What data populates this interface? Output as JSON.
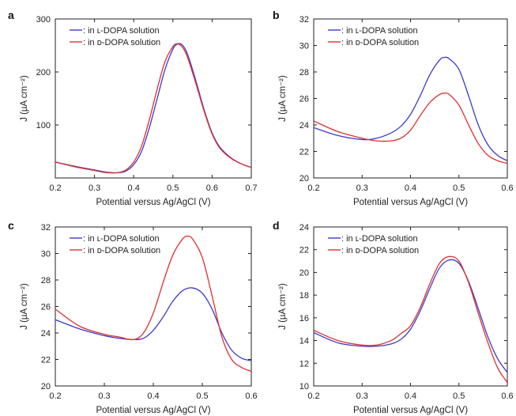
{
  "chart_data": [
    {
      "panel": "a",
      "type": "line",
      "xlabel": "Potential versus Ag/AgCl (V)",
      "ylabel": "J (µA cm⁻²)",
      "xlim": [
        0.2,
        0.7
      ],
      "ylim": [
        0,
        300
      ],
      "xticks": [
        0.2,
        0.3,
        0.4,
        0.5,
        0.6,
        0.7
      ],
      "yticks": [
        100,
        200,
        300
      ],
      "legend_position": "top-left",
      "series": [
        {
          "name": ": in ʟ-DOPA solution",
          "color": "#3b3bcc",
          "x": [
            0.2,
            0.25,
            0.3,
            0.33,
            0.36,
            0.38,
            0.4,
            0.42,
            0.44,
            0.46,
            0.48,
            0.5,
            0.51,
            0.52,
            0.53,
            0.54,
            0.56,
            0.58,
            0.6,
            0.62,
            0.65,
            0.68,
            0.7
          ],
          "y": [
            30,
            22,
            15,
            11,
            10,
            13,
            25,
            50,
            95,
            150,
            205,
            243,
            252,
            253,
            245,
            228,
            180,
            128,
            85,
            58,
            37,
            25,
            20
          ]
        },
        {
          "name": ": in ᴅ-DOPA solution",
          "color": "#e03030",
          "x": [
            0.2,
            0.25,
            0.3,
            0.33,
            0.36,
            0.38,
            0.4,
            0.42,
            0.44,
            0.46,
            0.48,
            0.5,
            0.51,
            0.52,
            0.53,
            0.54,
            0.56,
            0.58,
            0.6,
            0.62,
            0.65,
            0.68,
            0.7
          ],
          "y": [
            30,
            21,
            14,
            10,
            10,
            15,
            30,
            60,
            110,
            168,
            220,
            248,
            253,
            250,
            240,
            222,
            175,
            125,
            83,
            56,
            36,
            25,
            20
          ]
        }
      ]
    },
    {
      "panel": "b",
      "type": "line",
      "xlabel": "Potential versus Ag/AgCl (V)",
      "ylabel": "J (µA cm⁻²)",
      "xlim": [
        0.2,
        0.6
      ],
      "ylim": [
        20,
        32
      ],
      "xticks": [
        0.2,
        0.3,
        0.4,
        0.5,
        0.6
      ],
      "yticks": [
        20,
        22,
        24,
        26,
        28,
        30,
        32
      ],
      "legend_position": "top-left",
      "series": [
        {
          "name": ": in ʟ-DOPA solution",
          "color": "#3b3bcc",
          "x": [
            0.2,
            0.25,
            0.3,
            0.33,
            0.36,
            0.38,
            0.4,
            0.42,
            0.44,
            0.46,
            0.47,
            0.48,
            0.5,
            0.52,
            0.54,
            0.56,
            0.58,
            0.6
          ],
          "y": [
            23.8,
            23.2,
            22.9,
            23.0,
            23.4,
            23.9,
            24.8,
            26.2,
            27.8,
            28.9,
            29.1,
            29.0,
            28.2,
            26.2,
            24.0,
            22.5,
            21.7,
            21.3
          ]
        },
        {
          "name": ": in ᴅ-DOPA solution",
          "color": "#e03030",
          "x": [
            0.2,
            0.25,
            0.3,
            0.33,
            0.36,
            0.38,
            0.4,
            0.42,
            0.44,
            0.46,
            0.47,
            0.48,
            0.5,
            0.52,
            0.54,
            0.56,
            0.58,
            0.6
          ],
          "y": [
            24.3,
            23.5,
            23.0,
            22.8,
            22.8,
            23.0,
            23.6,
            24.7,
            25.7,
            26.3,
            26.4,
            26.3,
            25.5,
            24.0,
            22.6,
            21.7,
            21.3,
            21.1
          ]
        }
      ]
    },
    {
      "panel": "c",
      "type": "line",
      "xlabel": "Potential versus Ag/AgCl (V)",
      "ylabel": "J (µA cm⁻²)",
      "xlim": [
        0.2,
        0.6
      ],
      "ylim": [
        20,
        32
      ],
      "xticks": [
        0.2,
        0.3,
        0.4,
        0.5,
        0.6
      ],
      "yticks": [
        20,
        22,
        24,
        26,
        28,
        30,
        32
      ],
      "legend_position": "top-left",
      "series": [
        {
          "name": ": in ʟ-DOPA solution",
          "color": "#3b3bcc",
          "x": [
            0.2,
            0.25,
            0.3,
            0.33,
            0.36,
            0.38,
            0.4,
            0.42,
            0.44,
            0.46,
            0.48,
            0.5,
            0.52,
            0.54,
            0.56,
            0.58,
            0.6
          ],
          "y": [
            25.0,
            24.3,
            23.8,
            23.6,
            23.5,
            23.6,
            24.2,
            25.2,
            26.4,
            27.2,
            27.4,
            27.0,
            25.8,
            24.0,
            22.7,
            22.1,
            21.9
          ]
        },
        {
          "name": ": in ᴅ-DOPA solution",
          "color": "#e03030",
          "x": [
            0.2,
            0.25,
            0.3,
            0.33,
            0.36,
            0.38,
            0.4,
            0.42,
            0.44,
            0.46,
            0.47,
            0.48,
            0.5,
            0.52,
            0.54,
            0.56,
            0.58,
            0.6
          ],
          "y": [
            25.8,
            24.5,
            23.9,
            23.7,
            23.5,
            24.0,
            25.5,
            27.8,
            29.9,
            31.1,
            31.3,
            31.1,
            29.7,
            26.8,
            23.7,
            22.0,
            21.4,
            21.1
          ]
        }
      ]
    },
    {
      "panel": "d",
      "type": "line",
      "xlabel": "Potential versus Ag/AgCl (V)",
      "ylabel": "J (µA cm⁻²)",
      "xlim": [
        0.2,
        0.6
      ],
      "ylim": [
        10,
        24
      ],
      "xticks": [
        0.2,
        0.3,
        0.4,
        0.5,
        0.6
      ],
      "yticks": [
        10,
        12,
        14,
        16,
        18,
        20,
        22,
        24
      ],
      "legend_position": "top-left",
      "series": [
        {
          "name": ": in ʟ-DOPA solution",
          "color": "#3b3bcc",
          "x": [
            0.2,
            0.25,
            0.3,
            0.33,
            0.36,
            0.38,
            0.4,
            0.42,
            0.44,
            0.46,
            0.48,
            0.5,
            0.52,
            0.54,
            0.56,
            0.58,
            0.6
          ],
          "y": [
            14.7,
            13.8,
            13.5,
            13.5,
            13.7,
            14.1,
            15.0,
            16.6,
            18.6,
            20.4,
            21.1,
            20.8,
            19.2,
            16.8,
            14.3,
            12.4,
            11.2
          ]
        },
        {
          "name": ": in ᴅ-DOPA solution",
          "color": "#e03030",
          "x": [
            0.2,
            0.25,
            0.3,
            0.33,
            0.36,
            0.38,
            0.4,
            0.42,
            0.44,
            0.46,
            0.48,
            0.5,
            0.52,
            0.54,
            0.56,
            0.58,
            0.6
          ],
          "y": [
            14.9,
            14.0,
            13.6,
            13.6,
            14.0,
            14.6,
            15.3,
            16.9,
            19.0,
            20.8,
            21.4,
            21.0,
            19.1,
            16.4,
            13.8,
            11.6,
            10.3
          ]
        }
      ]
    }
  ]
}
